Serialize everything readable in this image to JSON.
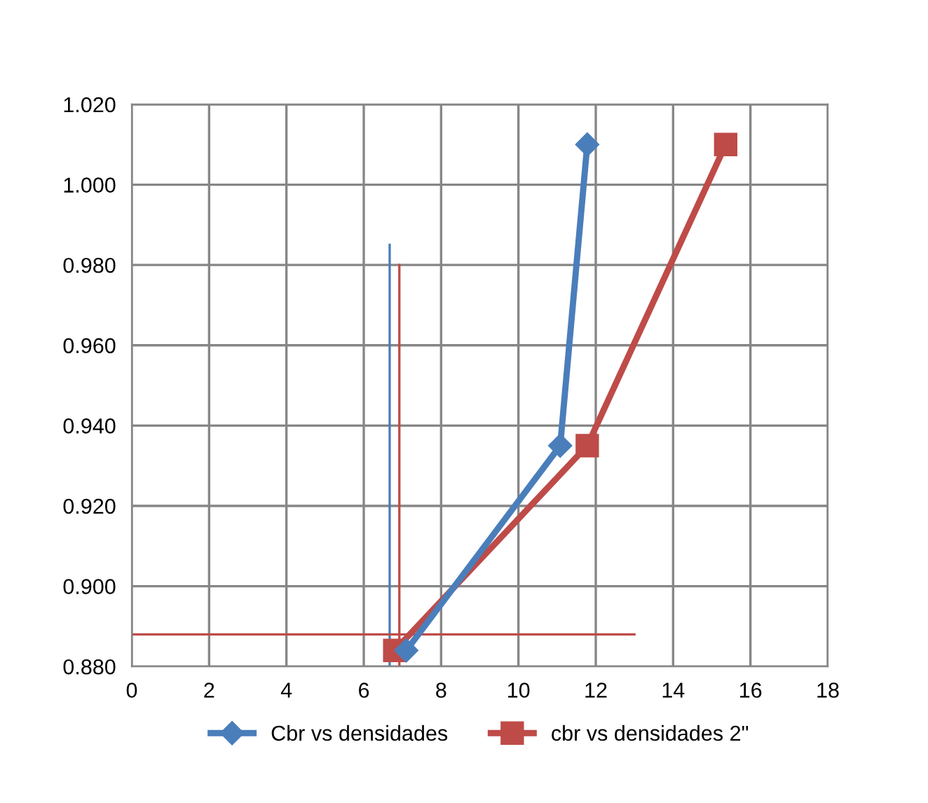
{
  "chart_data": {
    "type": "line",
    "series": [
      {
        "name": "Cbr vs densidades",
        "color": "#4a7ebb",
        "x": [
          7.1,
          11.08,
          11.78
        ],
        "values": [
          0.884,
          0.935,
          1.01
        ],
        "marker": "diamond"
      },
      {
        "name": "cbr vs densidades 2\"",
        "color": "#be4b48",
        "x": [
          6.8,
          11.78,
          15.36
        ],
        "values": [
          0.884,
          0.935,
          1.01
        ],
        "marker": "square"
      },
      {
        "color": "#4a7ebb",
        "x": [
          6.67,
          6.67
        ],
        "values": [
          0.88,
          0.985
        ],
        "marker": "none"
      },
      {
        "color": "#be4b48",
        "x": [
          6.92,
          6.92
        ],
        "values": [
          0.88,
          0.98
        ],
        "marker": "none"
      },
      {
        "color": "#be4b48",
        "x": [
          0,
          13
        ],
        "values": [
          0.888,
          0.888
        ],
        "marker": "none"
      }
    ],
    "xlim": [
      0,
      18
    ],
    "xticks": [
      0,
      2,
      4,
      6,
      8,
      10,
      12,
      14,
      16,
      18
    ],
    "ylim": [
      0.88,
      1.02
    ],
    "yticks": [
      {
        "value": 0.88,
        "label": "0.880"
      },
      {
        "value": 0.9,
        "label": "0.900"
      },
      {
        "value": 0.92,
        "label": "0.920"
      },
      {
        "value": 0.94,
        "label": "0.940"
      },
      {
        "value": 0.96,
        "label": "0.960"
      },
      {
        "value": 0.98,
        "label": "0.980"
      },
      {
        "value": 1.0,
        "label": "1.000"
      },
      {
        "value": 1.02,
        "label": "1.020"
      }
    ],
    "grid": true,
    "legend": "bottom",
    "line_style": "solid"
  }
}
